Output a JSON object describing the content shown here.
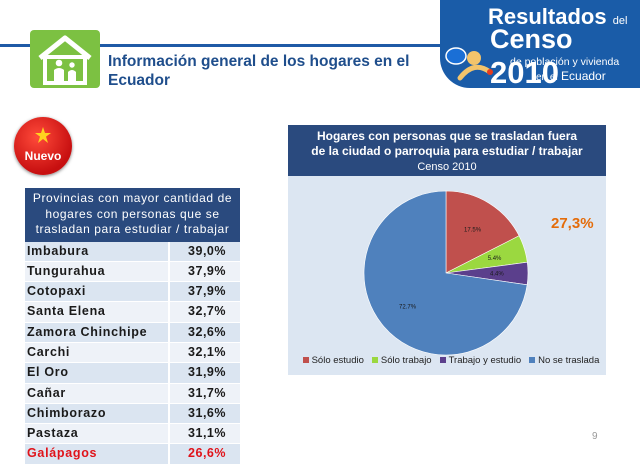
{
  "header": {
    "title_line1": "Información general de los hogares en el",
    "title_line2": "Ecuador",
    "house_icon": "house-family-icon"
  },
  "brand": {
    "resultados": "Resultados",
    "del": "del",
    "censo": "Censo",
    "year": "2010",
    "line3": "de población y vivienda",
    "en_el": "en el",
    "ecuador": "Ecuador"
  },
  "badge": {
    "label": "Nuevo",
    "icon": "star-icon"
  },
  "table": {
    "header": [
      "Provincias con mayor cantidad de",
      "hogares con personas que se",
      "trasladan para estudiar / trabajar"
    ],
    "rows": [
      {
        "name": "Imbabura",
        "value": "39,0%"
      },
      {
        "name": "Tungurahua",
        "value": "37,9%"
      },
      {
        "name": "Cotopaxi",
        "value": "37,9%"
      },
      {
        "name": "Santa Elena",
        "value": "32,7%"
      },
      {
        "name": "Zamora Chinchipe",
        "value": "32,6%"
      },
      {
        "name": "Carchi",
        "value": "32,1%"
      },
      {
        "name": "El Oro",
        "value": "31,9%"
      },
      {
        "name": "Cañar",
        "value": "31,7%"
      },
      {
        "name": "Chimborazo",
        "value": "31,6%"
      },
      {
        "name": "Pastaza",
        "value": "31,1%"
      },
      {
        "name": "Galápagos",
        "value": "26,6%"
      }
    ]
  },
  "highlight": "27,3%",
  "page_number": "9",
  "colors": {
    "solo_estudio": "#c0504d",
    "solo_trabajo": "#9bd840",
    "trabajo_estudio": "#5b3f8c",
    "no_traslada": "#4f81bd"
  },
  "chart_data": {
    "type": "pie",
    "title_line1": "Hogares con personas que se trasladan fuera",
    "title_line2": "de la ciudad o parroquia para estudiar / trabajar",
    "subtitle": "Censo 2010",
    "categories": [
      "Sólo estudio",
      "Sólo trabajo",
      "Trabajo y estudio",
      "No se traslada"
    ],
    "values": [
      17.5,
      5.4,
      4.4,
      72.7
    ],
    "labels": [
      "17.5%",
      "5.4%",
      "4.4%",
      "72.7%"
    ],
    "legend": "bottom"
  }
}
